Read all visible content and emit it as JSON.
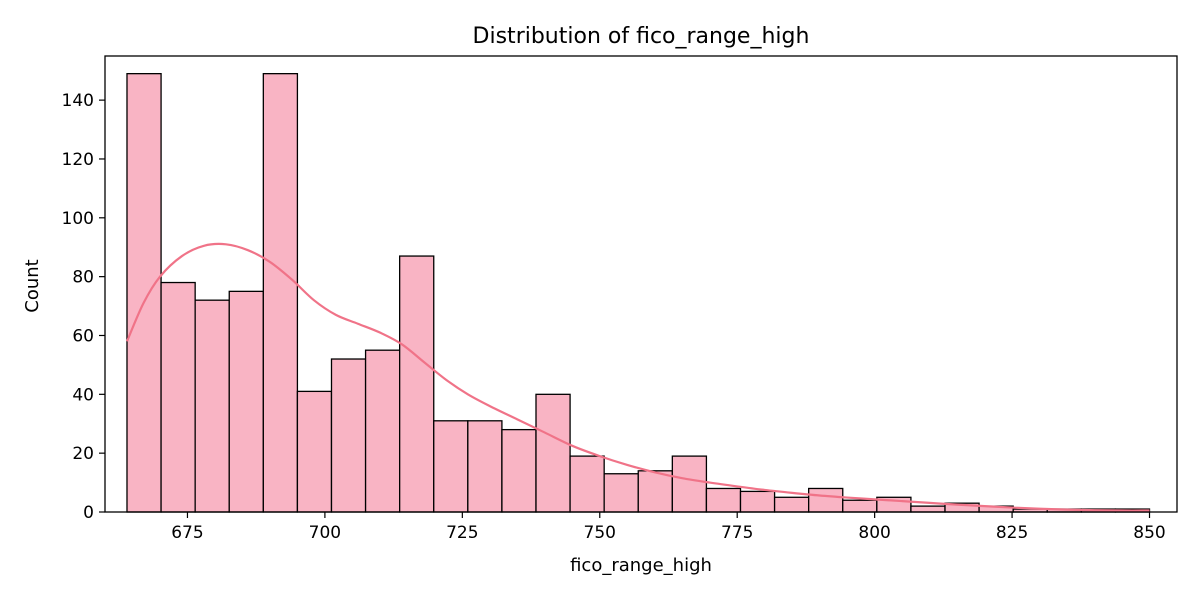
{
  "chart_data": {
    "type": "bar",
    "title": "Distribution of fico_range_high",
    "xlabel": "fico_range_high",
    "ylabel": "Count",
    "xlim": [
      660,
      855
    ],
    "ylim": [
      0,
      155
    ],
    "xticks": [
      675,
      700,
      725,
      750,
      775,
      800,
      825,
      850
    ],
    "yticks": [
      0,
      20,
      40,
      60,
      80,
      100,
      120,
      140
    ],
    "grid": false,
    "legend": "none",
    "bins": {
      "start": 664,
      "width": 6.2,
      "counts": [
        149,
        78,
        72,
        75,
        149,
        41,
        52,
        55,
        87,
        31,
        31,
        28,
        40,
        19,
        13,
        14,
        19,
        8,
        7,
        5,
        8,
        4,
        5,
        2,
        3,
        2,
        1,
        1,
        1,
        1
      ]
    },
    "kde": {
      "x": [
        664,
        667,
        670,
        674,
        678,
        682,
        686,
        690,
        694,
        698,
        702,
        706,
        710,
        714,
        718,
        722,
        726,
        730,
        735,
        740,
        745,
        750,
        755,
        760,
        765,
        770,
        775,
        780,
        785,
        790,
        795,
        800,
        805,
        810,
        815,
        820,
        825,
        830,
        835,
        840,
        845,
        850
      ],
      "y": [
        58,
        71,
        80,
        87,
        90.5,
        91,
        89,
        85,
        79,
        72,
        67,
        64,
        61,
        57,
        51,
        45,
        40,
        36,
        31.5,
        27,
        22.5,
        19,
        16,
        13.5,
        11.5,
        10,
        8.7,
        7.5,
        6.5,
        5.6,
        4.9,
        4.3,
        3.7,
        3.1,
        2.5,
        2.0,
        1.5,
        1.1,
        0.8,
        0.6,
        0.5,
        0.5
      ]
    },
    "colors": {
      "bar_fill": "#f9b4c4",
      "bar_edge": "#000000",
      "kde_line": "#f07388"
    }
  }
}
